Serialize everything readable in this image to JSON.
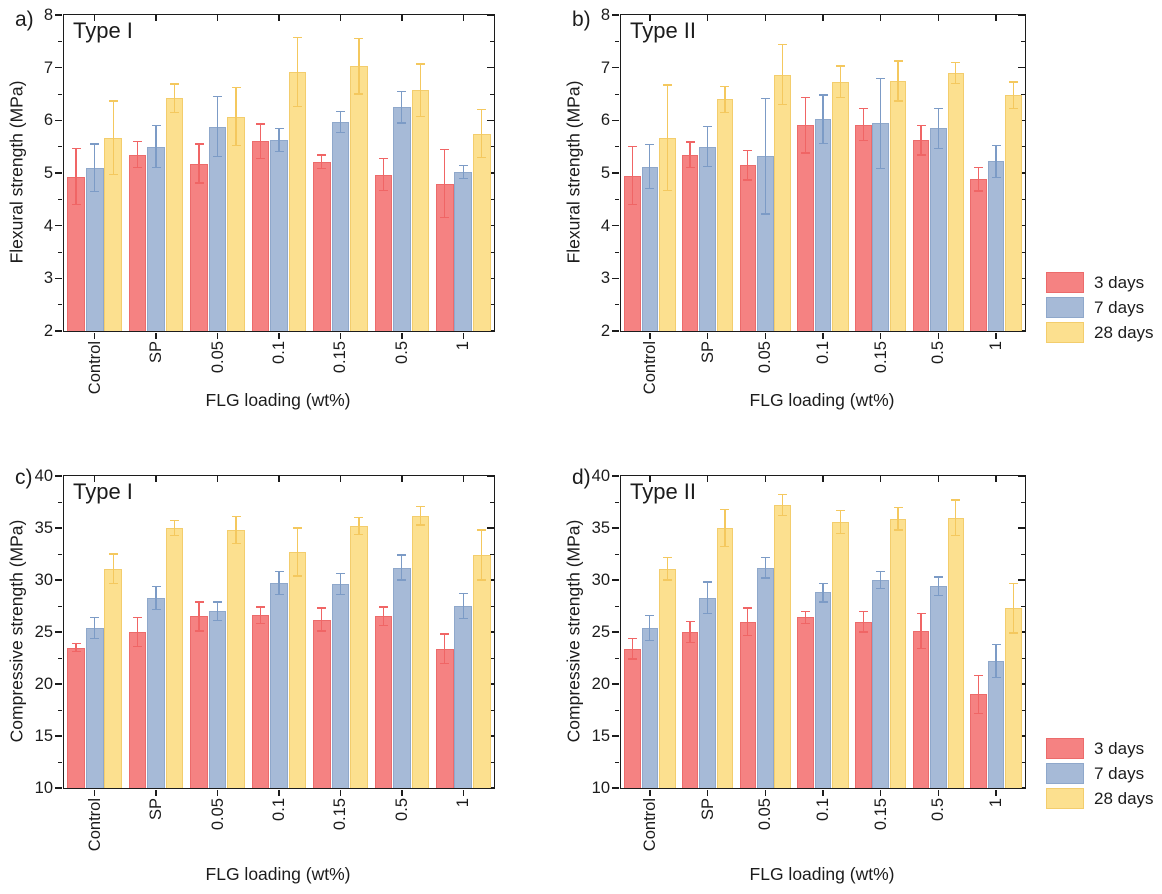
{
  "legend": {
    "items": [
      {
        "label": "3 days",
        "color": "#f58282",
        "edge": "#ec6b6b"
      },
      {
        "label": "7 days",
        "color": "#a6bad7",
        "edge": "#8fa8cb"
      },
      {
        "label": "28 days",
        "color": "#fce08f",
        "edge": "#f3cd6d"
      }
    ]
  },
  "chart_data": [
    {
      "type": "bar",
      "panel_letter": "a)",
      "title": "Type I",
      "ylabel": "Flexural strength (MPa)",
      "xlabel": "FLG loading (wt%)",
      "ylim": [
        2,
        8
      ],
      "ytick_major": 1,
      "ytick_minor": 0.5,
      "grid": false,
      "categories": [
        "Control",
        "SP",
        "0.05",
        "0.1",
        "0.15",
        "0.5",
        "1"
      ],
      "series": [
        {
          "name": "3 days",
          "color": "#f58282",
          "edge": "#ec6b6b",
          "err_color": "#f06565",
          "values": [
            4.93,
            5.35,
            5.18,
            5.6,
            5.21,
            4.97,
            4.8
          ],
          "errors": [
            0.53,
            0.25,
            0.37,
            0.33,
            0.13,
            0.3,
            0.65
          ]
        },
        {
          "name": "7 days",
          "color": "#a6bad7",
          "edge": "#8fa8cb",
          "err_color": "#7c9bc6",
          "values": [
            5.1,
            5.5,
            5.88,
            5.63,
            5.97,
            6.25,
            5.02
          ],
          "errors": [
            0.45,
            0.4,
            0.57,
            0.22,
            0.2,
            0.3,
            0.13
          ]
        },
        {
          "name": "28 days",
          "color": "#fce08f",
          "edge": "#f3cd6d",
          "err_color": "#f4c85e",
          "values": [
            5.67,
            6.42,
            6.07,
            6.92,
            7.03,
            6.57,
            5.75
          ],
          "errors": [
            0.7,
            0.27,
            0.55,
            0.65,
            0.53,
            0.5,
            0.45
          ]
        }
      ]
    },
    {
      "type": "bar",
      "panel_letter": "b)",
      "title": "Type II",
      "ylabel": "Flexural strength (MPa)",
      "xlabel": "FLG loading (wt%)",
      "ylim": [
        2,
        8
      ],
      "ytick_major": 1,
      "ytick_minor": 0.5,
      "grid": false,
      "categories": [
        "Control",
        "SP",
        "0.05",
        "0.1",
        "0.15",
        "0.5",
        "1"
      ],
      "series": [
        {
          "name": "3 days",
          "color": "#f58282",
          "edge": "#ec6b6b",
          "err_color": "#f06565",
          "values": [
            4.95,
            5.35,
            5.15,
            5.91,
            5.92,
            5.62,
            4.88
          ],
          "errors": [
            0.55,
            0.24,
            0.28,
            0.53,
            0.3,
            0.28,
            0.22
          ]
        },
        {
          "name": "7 days",
          "color": "#a6bad7",
          "edge": "#8fa8cb",
          "err_color": "#7c9bc6",
          "values": [
            5.12,
            5.5,
            5.32,
            6.02,
            5.94,
            5.85,
            5.22
          ],
          "errors": [
            0.42,
            0.38,
            1.1,
            0.46,
            0.85,
            0.38,
            0.3
          ]
        },
        {
          "name": "28 days",
          "color": "#fce08f",
          "edge": "#f3cd6d",
          "err_color": "#f4c85e",
          "values": [
            5.67,
            6.4,
            6.87,
            6.73,
            6.75,
            6.9,
            6.48
          ],
          "errors": [
            1.0,
            0.25,
            0.57,
            0.3,
            0.38,
            0.2,
            0.25
          ]
        }
      ]
    },
    {
      "type": "bar",
      "panel_letter": "c)",
      "title": "Type I",
      "ylabel": "Compressive strength (MPa)",
      "xlabel": "FLG loading (wt%)",
      "ylim": [
        10,
        40
      ],
      "ytick_major": 5,
      "ytick_minor": 2.5,
      "grid": false,
      "categories": [
        "Control",
        "SP",
        "0.05",
        "0.1",
        "0.15",
        "0.5",
        "1"
      ],
      "series": [
        {
          "name": "3 days",
          "color": "#f58282",
          "edge": "#ec6b6b",
          "err_color": "#f06565",
          "values": [
            23.5,
            25.0,
            26.5,
            26.6,
            26.2,
            26.5,
            23.4
          ],
          "errors": [
            0.4,
            1.4,
            1.4,
            0.8,
            1.1,
            0.9,
            1.4
          ]
        },
        {
          "name": "7 days",
          "color": "#a6bad7",
          "edge": "#8fa8cb",
          "err_color": "#7c9bc6",
          "values": [
            25.4,
            28.3,
            27.0,
            29.7,
            29.6,
            31.2,
            27.5
          ],
          "errors": [
            1.0,
            1.1,
            0.9,
            1.1,
            1.0,
            1.2,
            1.2
          ]
        },
        {
          "name": "28 days",
          "color": "#fce08f",
          "edge": "#f3cd6d",
          "err_color": "#f4c85e",
          "values": [
            31.1,
            35.0,
            34.8,
            32.7,
            35.2,
            36.2,
            32.4
          ],
          "errors": [
            1.4,
            0.7,
            1.3,
            2.3,
            0.8,
            0.9,
            2.4
          ]
        }
      ]
    },
    {
      "type": "bar",
      "panel_letter": "d)",
      "title": "Type II",
      "ylabel": "Compressive strength (MPa)",
      "xlabel": "FLG loading (wt%)",
      "ylim": [
        10,
        40
      ],
      "ytick_major": 5,
      "ytick_minor": 2.5,
      "grid": false,
      "categories": [
        "Control",
        "SP",
        "0.05",
        "0.1",
        "0.15",
        "0.5",
        "1"
      ],
      "series": [
        {
          "name": "3 days",
          "color": "#f58282",
          "edge": "#ec6b6b",
          "err_color": "#f06565",
          "values": [
            23.4,
            25.0,
            26.0,
            26.4,
            26.0,
            25.1,
            19.0
          ],
          "errors": [
            1.0,
            1.0,
            1.3,
            0.6,
            1.0,
            1.7,
            1.8
          ]
        },
        {
          "name": "7 days",
          "color": "#a6bad7",
          "edge": "#8fa8cb",
          "err_color": "#7c9bc6",
          "values": [
            25.4,
            28.3,
            31.2,
            28.8,
            30.0,
            29.4,
            22.2
          ],
          "errors": [
            1.2,
            1.5,
            1.0,
            0.9,
            0.8,
            0.9,
            1.6
          ]
        },
        {
          "name": "28 days",
          "color": "#fce08f",
          "edge": "#f3cd6d",
          "err_color": "#f4c85e",
          "values": [
            31.1,
            35.0,
            37.2,
            35.6,
            35.9,
            36.0,
            27.3
          ],
          "errors": [
            1.1,
            1.8,
            1.0,
            1.1,
            1.1,
            1.7,
            2.4
          ]
        }
      ]
    }
  ]
}
